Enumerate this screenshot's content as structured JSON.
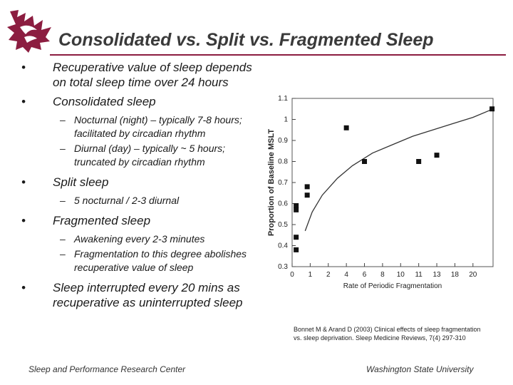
{
  "slide": {
    "title": "Consolidated vs. Split vs. Fragmented Sleep"
  },
  "bullets": [
    {
      "text": "Recuperative value of sleep depends on total sleep time over 24 hours",
      "sub": []
    },
    {
      "text": "Consolidated sleep",
      "sub": [
        "Nocturnal (night) – typically 7-8 hours; facilitated by circadian rhythm",
        "Diurnal (day) – typically ~ 5 hours; truncated by circadian rhythm"
      ]
    },
    {
      "text": "Split sleep",
      "sub": [
        "5 nocturnal / 2-3 diurnal"
      ]
    },
    {
      "text": "Fragmented sleep",
      "sub": [
        "Awakening every 2-3 minutes",
        "Fragmentation to this degree abolishes recuperative value of sleep"
      ]
    },
    {
      "text": "Sleep interrupted every 20 mins as recuperative as uninterrupted sleep",
      "sub": []
    }
  ],
  "citation": "Bonnet M & Arand D (2003) Clinical effects of sleep fragmentation vs. sleep deprivation. Sleep Medicine Reviews, 7(4) 297-310",
  "footer": {
    "left": "Sleep and Performance Research Center",
    "right": "Washington State University"
  },
  "colors": {
    "accent": "#8c1d40"
  },
  "chart_data": {
    "type": "scatter",
    "title": "",
    "xlabel": "Rate of Periodic Fragmentation",
    "ylabel": "Proportion of Baseline MSLT",
    "xlim": [
      0,
      20
    ],
    "ylim": [
      0.3,
      1.1
    ],
    "x_ticks": [
      "0",
      "1",
      "2",
      "4",
      "6",
      "8",
      "10",
      "11",
      "13",
      "18",
      "20"
    ],
    "x_tick_values": [
      0,
      1.8,
      3.6,
      5.4,
      7.2,
      9,
      10.8,
      12.6,
      14.4,
      16.2,
      18
    ],
    "y_ticks": [
      "0.3",
      "0.4",
      "0.5",
      "0.6",
      "0.7",
      "0.8",
      "0.9",
      "1",
      "1.1"
    ],
    "y_tick_values": [
      0.3,
      0.4,
      0.5,
      0.6,
      0.7,
      0.8,
      0.9,
      1.0,
      1.1
    ],
    "points": [
      {
        "x": 0.4,
        "y": 0.38
      },
      {
        "x": 0.4,
        "y": 0.44
      },
      {
        "x": 0.4,
        "y": 0.57
      },
      {
        "x": 0.4,
        "y": 0.59
      },
      {
        "x": 1.5,
        "y": 0.64
      },
      {
        "x": 1.5,
        "y": 0.68
      },
      {
        "x": 5.4,
        "y": 0.96
      },
      {
        "x": 7.2,
        "y": 0.8
      },
      {
        "x": 12.6,
        "y": 0.8
      },
      {
        "x": 14.4,
        "y": 0.83
      },
      {
        "x": 19.9,
        "y": 1.05
      }
    ],
    "curve": [
      {
        "x": 1.3,
        "y": 0.47
      },
      {
        "x": 2,
        "y": 0.56
      },
      {
        "x": 3,
        "y": 0.64
      },
      {
        "x": 4.5,
        "y": 0.72
      },
      {
        "x": 6,
        "y": 0.78
      },
      {
        "x": 8,
        "y": 0.84
      },
      {
        "x": 10,
        "y": 0.88
      },
      {
        "x": 12,
        "y": 0.92
      },
      {
        "x": 14,
        "y": 0.95
      },
      {
        "x": 16,
        "y": 0.98
      },
      {
        "x": 18,
        "y": 1.01
      },
      {
        "x": 20,
        "y": 1.05
      }
    ]
  }
}
